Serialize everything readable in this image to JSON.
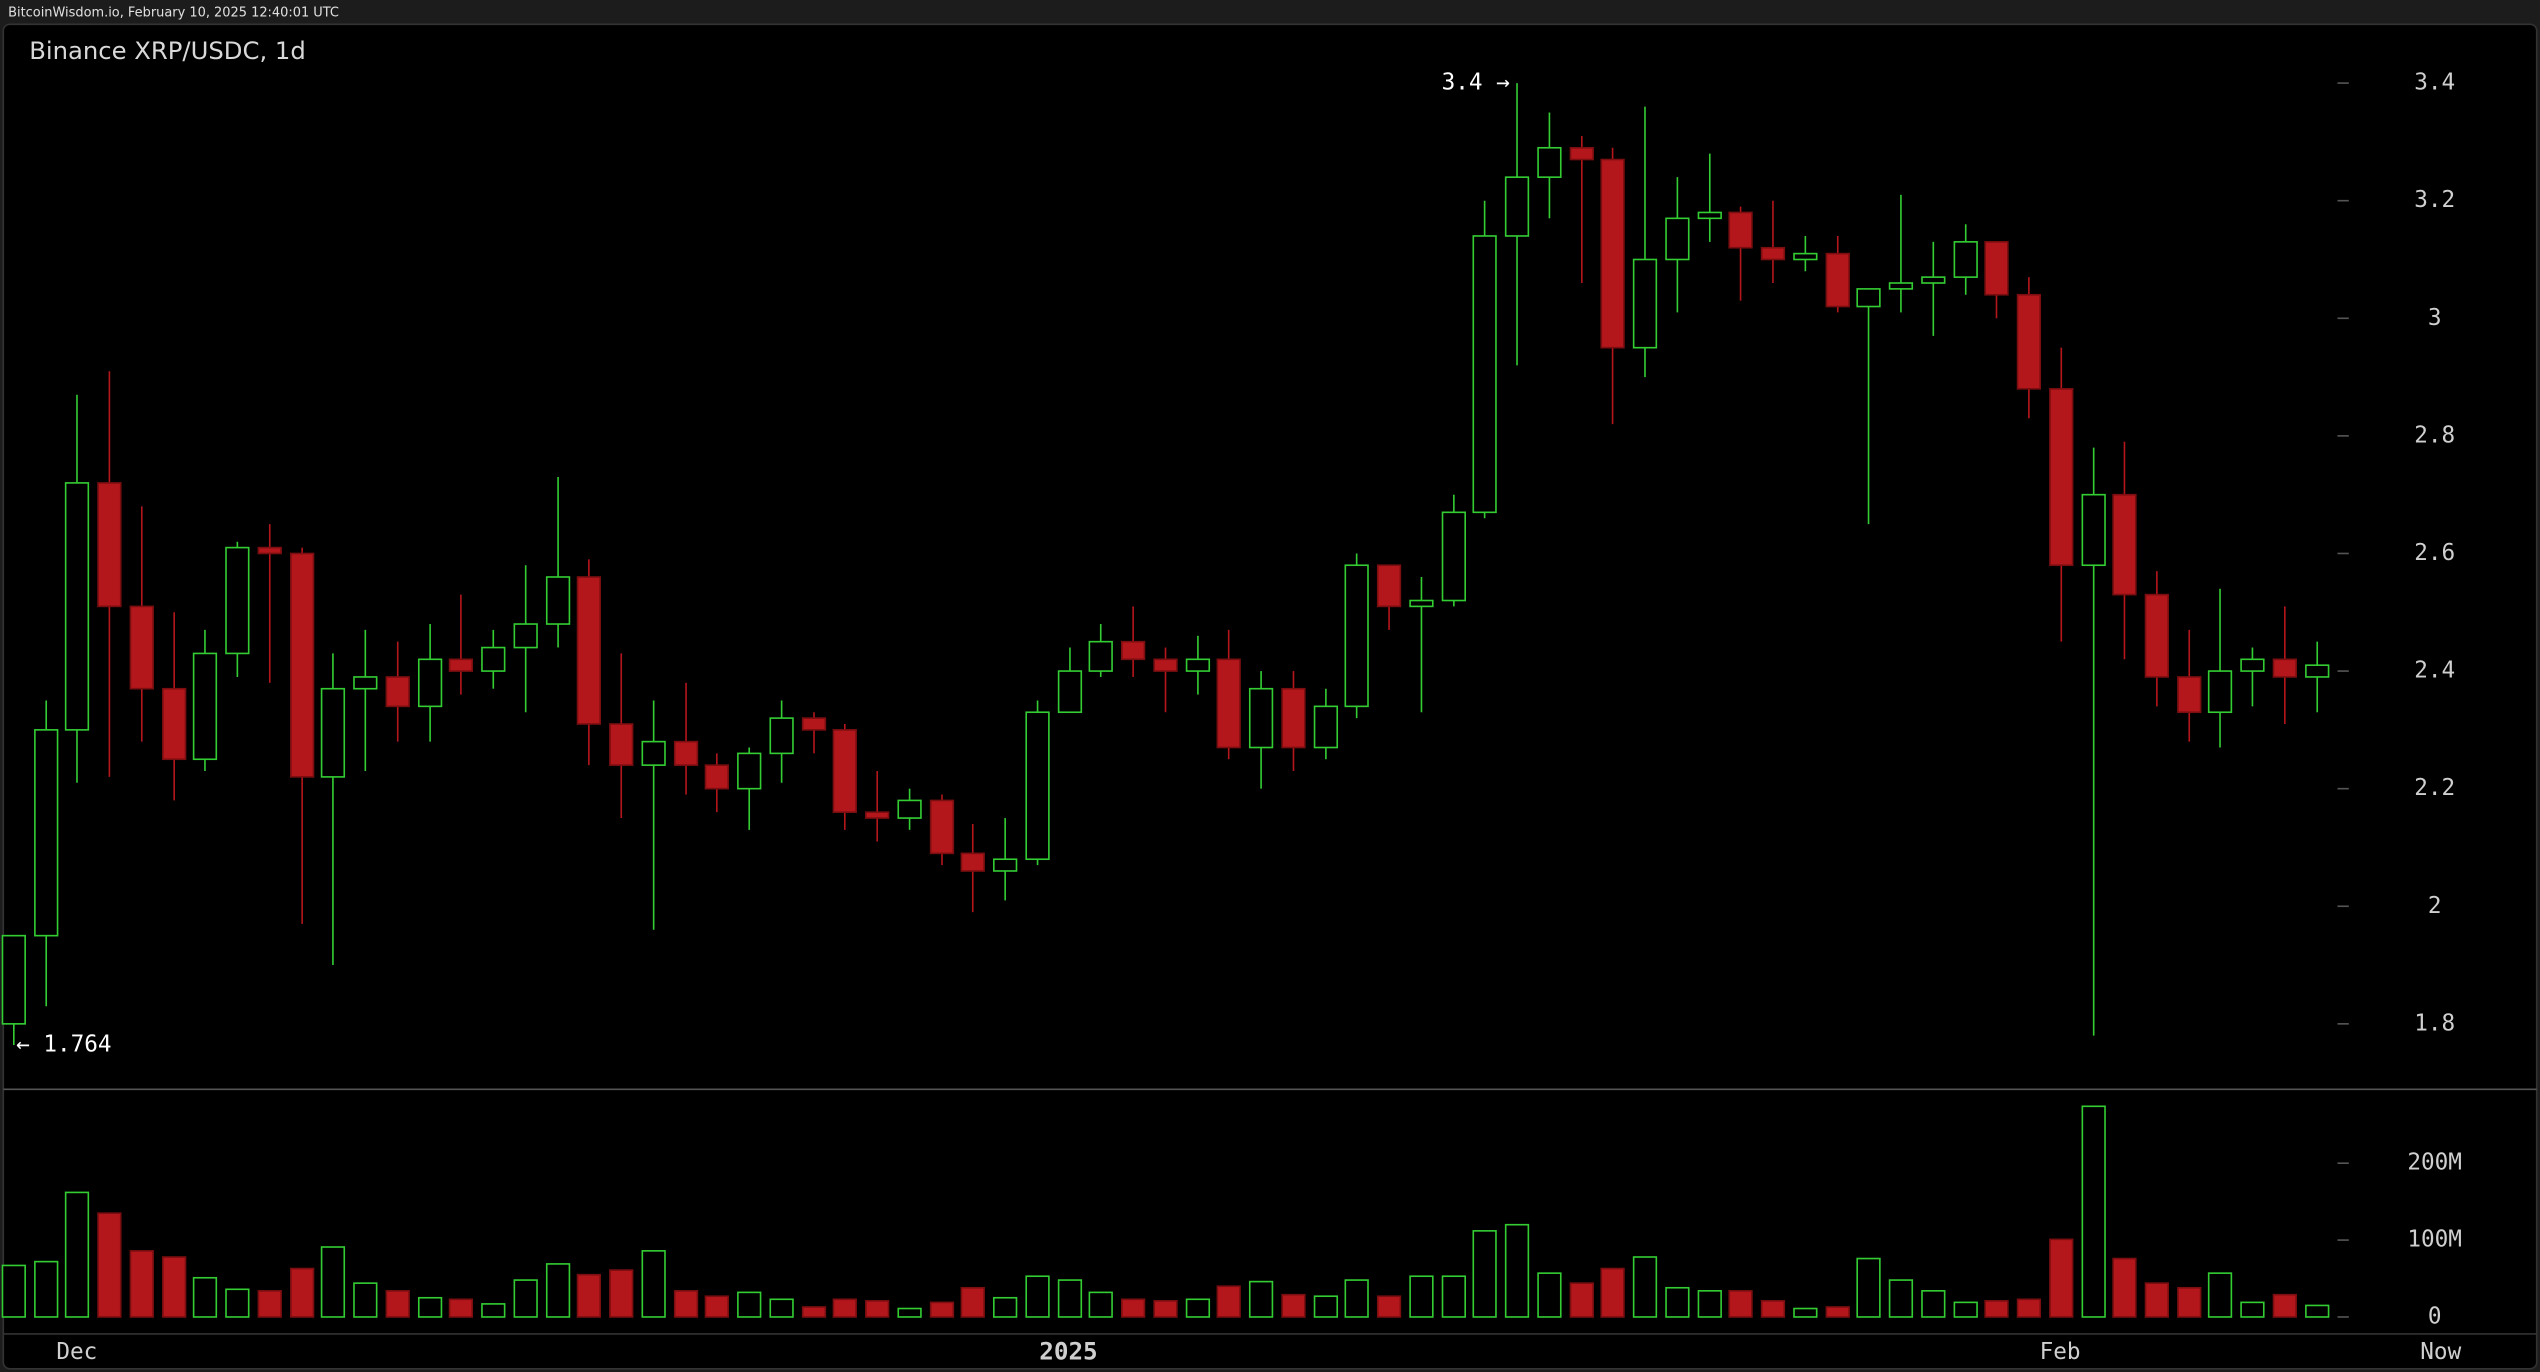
{
  "header": {
    "source": "BitcoinWisdom.io, February 10, 2025 12:40:01 UTC"
  },
  "chart_data": [
    {
      "type": "candlestick",
      "title": "Binance XRP/USDC, 1d",
      "open": [
        1.8,
        1.95,
        2.3,
        2.72,
        2.51,
        2.37,
        2.25,
        2.43,
        2.61,
        2.6,
        2.22,
        2.37,
        2.39,
        2.34,
        2.42,
        2.4,
        2.44,
        2.48,
        2.56,
        2.31,
        2.24,
        2.28,
        2.24,
        2.2,
        2.26,
        2.32,
        2.3,
        2.16,
        2.15,
        2.18,
        2.09,
        2.06,
        2.08,
        2.33,
        2.4,
        2.45,
        2.42,
        2.4,
        2.42,
        2.27,
        2.37,
        2.27,
        2.34,
        2.58,
        2.51,
        2.52,
        2.67,
        3.14,
        3.24,
        3.29,
        3.27,
        2.95,
        3.1,
        3.17,
        3.18,
        3.12,
        3.1,
        3.11,
        3.02,
        3.05,
        3.06,
        3.07,
        3.13,
        3.04,
        2.88,
        2.58,
        2.7,
        2.53,
        2.39,
        2.33,
        2.4,
        2.42,
        2.39
      ],
      "high": [
        1.95,
        2.35,
        2.87,
        2.91,
        2.68,
        2.5,
        2.47,
        2.62,
        2.65,
        2.61,
        2.43,
        2.47,
        2.45,
        2.48,
        2.53,
        2.47,
        2.58,
        2.73,
        2.59,
        2.43,
        2.35,
        2.38,
        2.26,
        2.27,
        2.35,
        2.33,
        2.31,
        2.23,
        2.2,
        2.19,
        2.14,
        2.15,
        2.35,
        2.44,
        2.48,
        2.51,
        2.44,
        2.46,
        2.47,
        2.4,
        2.4,
        2.37,
        2.6,
        2.58,
        2.56,
        2.7,
        3.2,
        3.4,
        3.35,
        3.31,
        3.29,
        3.36,
        3.24,
        3.28,
        3.19,
        3.2,
        3.14,
        3.14,
        3.05,
        3.21,
        3.13,
        3.16,
        3.13,
        3.07,
        2.95,
        2.78,
        2.79,
        2.57,
        2.47,
        2.54,
        2.44,
        2.51,
        2.45
      ],
      "low": [
        1.764,
        1.83,
        2.21,
        2.22,
        2.28,
        2.18,
        2.23,
        2.39,
        2.38,
        1.97,
        1.9,
        2.23,
        2.28,
        2.28,
        2.36,
        2.37,
        2.33,
        2.44,
        2.24,
        2.15,
        1.96,
        2.19,
        2.16,
        2.13,
        2.21,
        2.26,
        2.13,
        2.11,
        2.13,
        2.07,
        1.99,
        2.01,
        2.07,
        2.33,
        2.39,
        2.39,
        2.33,
        2.36,
        2.25,
        2.2,
        2.23,
        2.25,
        2.32,
        2.47,
        2.33,
        2.51,
        2.66,
        2.92,
        3.17,
        3.06,
        2.82,
        2.9,
        3.01,
        3.13,
        3.03,
        3.06,
        3.08,
        3.01,
        2.65,
        3.01,
        2.97,
        3.04,
        3.0,
        2.83,
        2.45,
        1.78,
        2.42,
        2.34,
        2.28,
        2.27,
        2.34,
        2.31,
        2.33
      ],
      "close": [
        1.95,
        2.3,
        2.72,
        2.51,
        2.37,
        2.25,
        2.43,
        2.61,
        2.6,
        2.22,
        2.37,
        2.39,
        2.34,
        2.42,
        2.4,
        2.44,
        2.48,
        2.56,
        2.31,
        2.24,
        2.28,
        2.24,
        2.2,
        2.26,
        2.32,
        2.3,
        2.16,
        2.15,
        2.18,
        2.09,
        2.06,
        2.08,
        2.33,
        2.4,
        2.45,
        2.42,
        2.4,
        2.42,
        2.27,
        2.37,
        2.27,
        2.34,
        2.58,
        2.51,
        2.52,
        2.67,
        3.14,
        3.24,
        3.29,
        3.27,
        2.95,
        3.1,
        3.17,
        3.18,
        3.12,
        3.1,
        3.11,
        3.02,
        3.05,
        3.06,
        3.07,
        3.13,
        3.04,
        2.88,
        2.58,
        2.7,
        2.53,
        2.39,
        2.33,
        2.4,
        2.42,
        2.39,
        2.41
      ],
      "up_color": "#33cc33",
      "down_color": "#b3161b",
      "ylim": [
        1.69,
        3.5
      ],
      "yticks": [
        1.8,
        2,
        2.2,
        2.4,
        2.6,
        2.8,
        3,
        3.2,
        3.4
      ],
      "xlim": [
        -0.4,
        78.9
      ],
      "annotations": [
        {
          "text": "3.4 →"
        },
        {
          "text": "← 1.764"
        }
      ]
    },
    {
      "type": "bar",
      "values": [
        67,
        72,
        162,
        135,
        86,
        78,
        51,
        36,
        34,
        63,
        91,
        44,
        34,
        25,
        23,
        17,
        48,
        69,
        55,
        61,
        86,
        34,
        27,
        32,
        23,
        13,
        23,
        21,
        11,
        19,
        38,
        25,
        53,
        48,
        32,
        23,
        21,
        23,
        40,
        46,
        29,
        27,
        48,
        27,
        53,
        53,
        112,
        120,
        57,
        44,
        63,
        78,
        38,
        34,
        34,
        21,
        11,
        13,
        76,
        48,
        34,
        19,
        21,
        23,
        101,
        274,
        76,
        44,
        38,
        57,
        19,
        29,
        15
      ],
      "ylim": [
        -21,
        295
      ],
      "yticks": [
        0,
        {
          "value": 100,
          "label": "100M"
        },
        {
          "value": 200,
          "label": "200M"
        }
      ],
      "xlim": [
        -0.4,
        78.9
      ],
      "xticks": [
        {
          "value": 2,
          "label": "Dec"
        },
        {
          "value": 33,
          "label": "2025"
        },
        {
          "value": 64,
          "label": "Feb"
        },
        {
          "value": 75.9,
          "label": "Now"
        }
      ]
    }
  ]
}
